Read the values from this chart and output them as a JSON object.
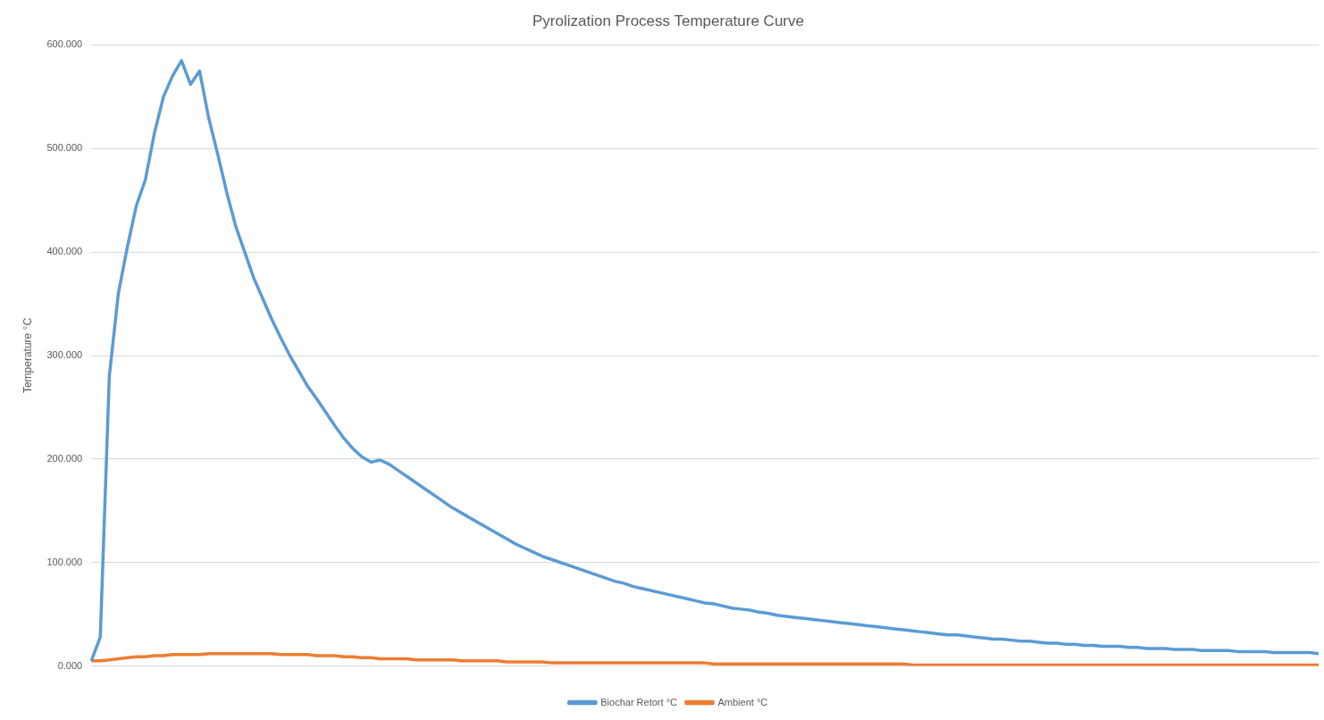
{
  "chart_data": {
    "type": "line",
    "title": "Pyrolization Process Temperature Curve",
    "ylabel": "Temperature °C",
    "categories": [
      null,
      null,
      null,
      null,
      null,
      null,
      null,
      null,
      null,
      null,
      null,
      null,
      null,
      null,
      null,
      null,
      null,
      null,
      null,
      null,
      null,
      null,
      null,
      null,
      null,
      null,
      null,
      null,
      null,
      null,
      null,
      null,
      null,
      null,
      null,
      null,
      null,
      null,
      null,
      null,
      null,
      null,
      null,
      null,
      null,
      null,
      null,
      null,
      null,
      null,
      null,
      null,
      null,
      null,
      null,
      null,
      null,
      null,
      null,
      null,
      null,
      null,
      null,
      null,
      null,
      null,
      null,
      null,
      null,
      null,
      null,
      null,
      null,
      null,
      null,
      null,
      null,
      null,
      null,
      null,
      null,
      null,
      null,
      null,
      null,
      null,
      null,
      null,
      null,
      null,
      null,
      null,
      null,
      null,
      null,
      null,
      null,
      null,
      null,
      null,
      null,
      null,
      null,
      null,
      null,
      null,
      null,
      null,
      null,
      null,
      null,
      null,
      null,
      null,
      null,
      null,
      null,
      null,
      null,
      null,
      null,
      null,
      null,
      null,
      null,
      null,
      null,
      null,
      null,
      null,
      null,
      null,
      null,
      null,
      null,
      null,
      null
    ],
    "series": [
      {
        "name": "Biochar Retort °C",
        "color": "#5b9bd5",
        "values": [
          5,
          28,
          280,
          360,
          405,
          445,
          470,
          515,
          550,
          570,
          585,
          562,
          575,
          530,
          495,
          458,
          425,
          400,
          375,
          355,
          335,
          317,
          300,
          285,
          270,
          258,
          245,
          232,
          220,
          210,
          202,
          197,
          199,
          195,
          189,
          183,
          177,
          171,
          165,
          159,
          153,
          148,
          143,
          138,
          133,
          128,
          123,
          118,
          114,
          110,
          106,
          103,
          100,
          97,
          94,
          91,
          88,
          85,
          82,
          80,
          77,
          75,
          73,
          71,
          69,
          67,
          65,
          63,
          61,
          60,
          58,
          56,
          55,
          54,
          52,
          51,
          49,
          48,
          47,
          46,
          45,
          44,
          43,
          42,
          41,
          40,
          39,
          38,
          37,
          36,
          35,
          34,
          33,
          32,
          31,
          30,
          30,
          29,
          28,
          27,
          26,
          26,
          25,
          24,
          24,
          23,
          22,
          22,
          21,
          21,
          20,
          20,
          19,
          19,
          19,
          18,
          18,
          17,
          17,
          17,
          16,
          16,
          16,
          15,
          15,
          15,
          15,
          14,
          14,
          14,
          14,
          13,
          13,
          13,
          13,
          13,
          12
        ]
      },
      {
        "name": "Ambient °C",
        "color": "#ed7d31",
        "values": [
          5,
          5,
          6,
          7,
          8,
          9,
          9,
          10,
          10,
          11,
          11,
          11,
          11,
          12,
          12,
          12,
          12,
          12,
          12,
          12,
          12,
          11,
          11,
          11,
          11,
          10,
          10,
          10,
          9,
          9,
          8,
          8,
          7,
          7,
          7,
          7,
          6,
          6,
          6,
          6,
          6,
          5,
          5,
          5,
          5,
          5,
          4,
          4,
          4,
          4,
          4,
          3,
          3,
          3,
          3,
          3,
          3,
          3,
          3,
          3,
          3,
          3,
          3,
          3,
          3,
          3,
          3,
          3,
          3,
          2,
          2,
          2,
          2,
          2,
          2,
          2,
          2,
          2,
          2,
          2,
          2,
          2,
          2,
          2,
          2,
          2,
          2,
          2,
          2,
          2,
          2,
          1,
          1,
          1,
          1,
          1,
          1,
          1,
          1,
          1,
          1,
          1,
          1,
          1,
          1,
          1,
          1,
          1,
          1,
          1,
          1,
          1,
          1,
          1,
          1,
          1,
          1,
          1,
          1,
          1,
          1,
          1,
          1,
          1,
          1,
          1,
          1,
          1,
          1,
          1,
          1,
          1,
          1,
          1,
          1,
          1,
          1
        ]
      }
    ],
    "ylim": [
      0,
      600
    ],
    "yticks": [
      {
        "value": 0,
        "label": "0.000"
      },
      {
        "value": 100,
        "label": "100.000"
      },
      {
        "value": 200,
        "label": "200.000"
      },
      {
        "value": 300,
        "label": "300.000"
      },
      {
        "value": 400,
        "label": "400.000"
      },
      {
        "value": 500,
        "label": "500.000"
      },
      {
        "value": 600,
        "label": "600.000"
      }
    ],
    "grid": "y",
    "legend": "bottom",
    "marker": "none",
    "line_style": "solid"
  }
}
